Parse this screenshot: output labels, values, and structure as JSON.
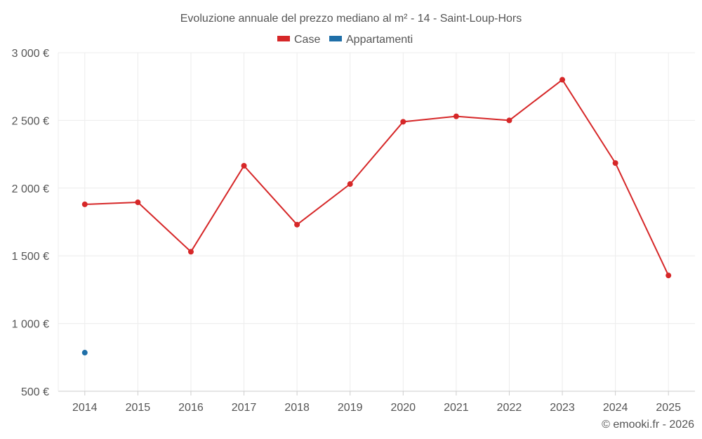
{
  "chart_data": {
    "type": "line",
    "title": "Evoluzione annuale del prezzo mediano al m² - 14 - Saint-Loup-Hors",
    "categories": [
      "2014",
      "2015",
      "2016",
      "2017",
      "2018",
      "2019",
      "2020",
      "2021",
      "2022",
      "2023",
      "2024",
      "2025"
    ],
    "ylim": [
      500,
      3000
    ],
    "yticks": [
      500,
      1000,
      1500,
      2000,
      2500,
      3000
    ],
    "ytick_labels": [
      "500 €",
      "1 000 €",
      "1 500 €",
      "2 000 €",
      "2 500 €",
      "3 000 €"
    ],
    "grid": true,
    "legend_position": "top-center",
    "series": [
      {
        "name": "Case",
        "color": "#d62728",
        "values": [
          1880,
          1895,
          1530,
          2165,
          1730,
          2030,
          2490,
          2530,
          2500,
          2800,
          2185,
          1355
        ]
      },
      {
        "name": "Appartamenti",
        "color": "#1f6fa8",
        "values": [
          785,
          null,
          null,
          null,
          null,
          null,
          null,
          null,
          null,
          null,
          null,
          null
        ]
      }
    ]
  },
  "credit": "© emooki.fr - 2026"
}
